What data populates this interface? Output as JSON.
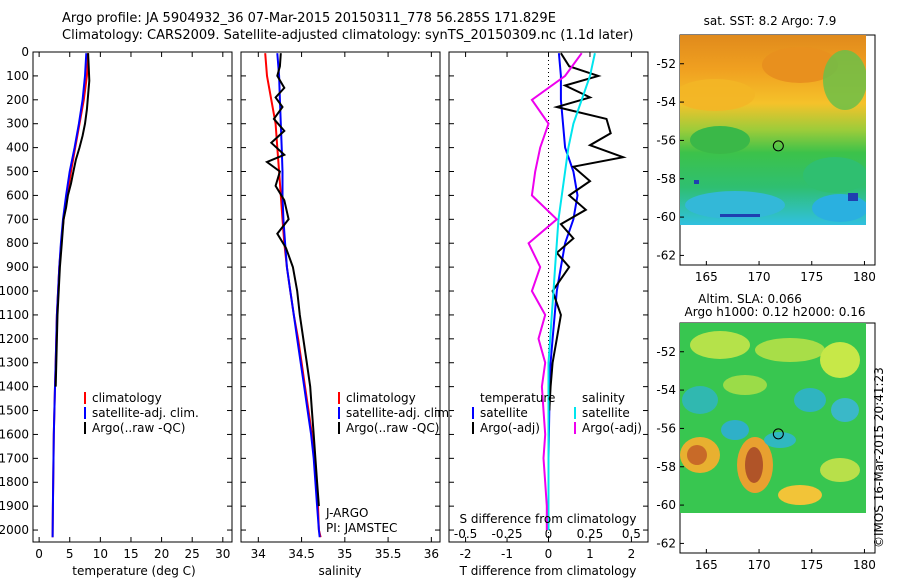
{
  "header": {
    "line1": "Argo profile: JA 5904932_36 07-Mar-2015 20150311_778 56.285S 171.829E",
    "line2": "Climatology: CARS2009. Satellite-adjusted climatology: synTS_20150309.nc (1.1d later)"
  },
  "credit": "©IMOS 16-Mar-2015 20:41:23",
  "colors": {
    "climatology": "#ff0000",
    "satellite": "#0000ff",
    "argo": "#000000",
    "salinity_satellite": "#00e5ee",
    "salinity_argo": "#ee00ee",
    "marker": "#000000"
  },
  "chart_data": [
    {
      "type": "line",
      "id": "temperature",
      "xlabel": "temperature (deg C)",
      "ylabel": "",
      "xlim": [
        -1,
        31.5
      ],
      "ylim": [
        2050,
        0
      ],
      "xticks": [
        "0",
        "5",
        "10",
        "15",
        "20",
        "25",
        "30"
      ],
      "yticks": [
        "0",
        "100",
        "200",
        "300",
        "400",
        "500",
        "600",
        "700",
        "800",
        "900",
        "1000",
        "1100",
        "1200",
        "1300",
        "1400",
        "1500",
        "1600",
        "1700",
        "1800",
        "1900",
        "2000"
      ],
      "legend": [
        "climatology",
        "satellite-adj. clim.",
        "Argo(..raw -QC)"
      ],
      "series": [
        {
          "name": "climatology",
          "color": "#ff0000",
          "x": [
            8.0,
            7.8,
            7.3,
            6.6,
            5.9,
            5.2,
            4.6,
            4.0,
            3.6,
            3.3,
            3.1,
            2.9,
            2.8,
            2.7,
            2.6,
            2.5,
            2.4,
            2.35,
            2.3,
            2.25,
            2.2
          ],
          "y": [
            5,
            100,
            200,
            300,
            400,
            500,
            600,
            700,
            800,
            900,
            1000,
            1100,
            1200,
            1300,
            1400,
            1500,
            1600,
            1700,
            1800,
            1900,
            2030
          ]
        },
        {
          "name": "satellite-adj. clim.",
          "color": "#0000ff",
          "x": [
            7.7,
            7.5,
            7.1,
            6.5,
            5.8,
            5.0,
            4.4,
            3.9,
            3.55,
            3.3,
            3.1,
            2.9,
            2.8,
            2.7,
            2.6,
            2.5,
            2.4,
            2.35,
            2.3,
            2.25,
            2.2
          ],
          "y": [
            5,
            100,
            200,
            300,
            400,
            500,
            600,
            700,
            800,
            900,
            1000,
            1100,
            1200,
            1300,
            1400,
            1500,
            1600,
            1700,
            1800,
            1900,
            2030
          ]
        },
        {
          "name": "Argo(..raw -QC)",
          "color": "#000000",
          "x": [
            8.0,
            8.1,
            8.2,
            8.0,
            7.8,
            7.5,
            7.1,
            6.6,
            6.0,
            5.6,
            5.2,
            4.7,
            4.4,
            4.0,
            3.7,
            3.4,
            3.2,
            3.0,
            2.9,
            2.8,
            2.7
          ],
          "y": [
            5,
            60,
            120,
            180,
            240,
            300,
            350,
            400,
            450,
            500,
            550,
            600,
            650,
            700,
            800,
            900,
            1000,
            1100,
            1200,
            1300,
            1400
          ]
        }
      ],
      "annotations": []
    },
    {
      "type": "line",
      "id": "salinity",
      "xlabel": "salinity",
      "ylabel": "",
      "xlim": [
        33.8,
        36.1
      ],
      "ylim": [
        2050,
        0
      ],
      "xticks": [
        "34",
        "34.5",
        "35",
        "35.5",
        "36"
      ],
      "legend": [
        "climatology",
        "satellite-adj. clim.",
        "Argo(..raw -QC)"
      ],
      "series": [
        {
          "name": "climatology",
          "color": "#ff0000",
          "x": [
            34.08,
            34.1,
            34.15,
            34.2,
            34.22,
            34.24,
            34.26,
            34.28,
            34.3,
            34.33,
            34.37,
            34.41,
            34.46,
            34.5,
            34.54,
            34.58,
            34.62,
            34.65,
            34.67,
            34.69,
            34.7,
            34.72
          ],
          "y": [
            5,
            100,
            200,
            300,
            400,
            500,
            600,
            700,
            800,
            900,
            1000,
            1100,
            1200,
            1300,
            1400,
            1500,
            1600,
            1700,
            1800,
            1900,
            2000,
            2030
          ]
        },
        {
          "name": "satellite-adj. clim.",
          "color": "#0000ff",
          "x": [
            34.22,
            34.24,
            34.25,
            34.26,
            34.27,
            34.28,
            34.28,
            34.29,
            34.31,
            34.33,
            34.37,
            34.41,
            34.45,
            34.49,
            34.53,
            34.57,
            34.61,
            34.64,
            34.66,
            34.68,
            34.7,
            34.71
          ],
          "y": [
            5,
            100,
            200,
            300,
            400,
            500,
            600,
            700,
            800,
            900,
            1000,
            1100,
            1200,
            1300,
            1400,
            1500,
            1600,
            1700,
            1800,
            1900,
            2000,
            2030
          ]
        },
        {
          "name": "Argo(..raw -QC)",
          "color": "#000000",
          "x": [
            34.26,
            34.25,
            34.22,
            34.3,
            34.2,
            34.28,
            34.18,
            34.3,
            34.15,
            34.3,
            34.1,
            34.25,
            34.2,
            34.3,
            34.35,
            34.22,
            34.32,
            34.4,
            34.45,
            34.48,
            34.52,
            34.56,
            34.6,
            34.62,
            34.64,
            34.66,
            34.68,
            34.7
          ],
          "y": [
            5,
            60,
            100,
            150,
            190,
            230,
            280,
            330,
            380,
            430,
            460,
            500,
            560,
            620,
            700,
            760,
            820,
            900,
            1000,
            1100,
            1200,
            1300,
            1400,
            1500,
            1600,
            1700,
            1800,
            1900
          ]
        }
      ],
      "annotations": [
        "J-ARGO",
        "PI: JAMSTEC"
      ]
    },
    {
      "type": "line",
      "id": "difference",
      "xlabel": "T difference from climatology",
      "xlabel2": "S difference from climatology",
      "xlim": [
        -2.4,
        2.4
      ],
      "ylim": [
        2050,
        0
      ],
      "xticks": [
        "-2",
        "-1",
        "0",
        "1",
        "2"
      ],
      "xticks2": [
        "-0.5",
        "-0.25",
        "0",
        "0.25",
        "0.5"
      ],
      "legend_headers": [
        "temperature",
        "salinity"
      ],
      "legend": [
        "satellite",
        "Argo(-adj)",
        "satellite",
        "Argo(-adj)"
      ],
      "series": [
        {
          "name": "temperature satellite",
          "color": "#0000ff",
          "x": [
            0.25,
            0.3,
            0.3,
            0.35,
            0.4,
            0.6,
            0.7,
            0.6,
            0.4,
            0.3,
            0.2,
            0.15,
            0.1,
            0.05,
            0.03,
            0.02,
            0.01,
            0.0,
            0.0,
            0.0,
            0.0
          ],
          "y": [
            5,
            100,
            200,
            300,
            400,
            500,
            600,
            700,
            800,
            900,
            1000,
            1100,
            1200,
            1300,
            1400,
            1500,
            1600,
            1700,
            1800,
            1900,
            2000
          ]
        },
        {
          "name": "temperature Argo(-adj)",
          "color": "#000000",
          "x": [
            0.3,
            0.5,
            1.2,
            0.4,
            1.0,
            0.2,
            1.4,
            1.5,
            1.0,
            1.8,
            0.6,
            1.0,
            0.5,
            0.9,
            0.3,
            0.6,
            0.2,
            0.5,
            0.1,
            0.3,
            0.2,
            0.1,
            0.05,
            0.02
          ],
          "y": [
            5,
            60,
            100,
            140,
            190,
            230,
            280,
            340,
            390,
            440,
            480,
            540,
            600,
            660,
            720,
            780,
            840,
            900,
            1000,
            1100,
            1200,
            1300,
            1400,
            1500
          ]
        },
        {
          "name": "salinity satellite",
          "color": "#00e5ee",
          "x": [
            0.28,
            0.25,
            0.2,
            0.15,
            0.12,
            0.1,
            0.08,
            0.06,
            0.05,
            0.04,
            0.03,
            0.02,
            0.01,
            0.0,
            0.0,
            0.0,
            0.0,
            0.0,
            0.0,
            0.0,
            0.0
          ],
          "y": [
            5,
            100,
            200,
            300,
            400,
            500,
            600,
            700,
            800,
            900,
            1000,
            1100,
            1200,
            1300,
            1400,
            1500,
            1600,
            1700,
            1800,
            1900,
            2000
          ]
        },
        {
          "name": "salinity Argo(-adj)",
          "color": "#ee00ee",
          "x": [
            0.2,
            0.1,
            -0.1,
            0.0,
            -0.05,
            -0.08,
            -0.1,
            0.05,
            -0.12,
            -0.05,
            -0.1,
            -0.02,
            -0.06,
            -0.02,
            -0.04,
            -0.03,
            -0.02,
            -0.03,
            -0.02,
            -0.01,
            -0.01
          ],
          "y": [
            5,
            100,
            200,
            300,
            400,
            500,
            600,
            700,
            800,
            900,
            1000,
            1100,
            1200,
            1300,
            1400,
            1500,
            1600,
            1700,
            1800,
            1900,
            2000
          ]
        }
      ],
      "annotations": []
    },
    {
      "type": "heatmap",
      "id": "sst-map",
      "title": "sat. SST: 8.2  Argo: 7.9",
      "xlim": [
        162.5,
        181
      ],
      "ylim": [
        -62.5,
        -50.5
      ],
      "xticks": [
        "165",
        "170",
        "175",
        "180"
      ],
      "yticks": [
        "-52",
        "-54",
        "-56",
        "-58",
        "-60",
        "-62"
      ],
      "marker": {
        "lon": 171.829,
        "lat": -56.285
      }
    },
    {
      "type": "heatmap",
      "id": "sla-map",
      "title": "Altim. SLA: 0.066",
      "subtitle": "Argo h1000: 0.12 h2000: 0.16",
      "xlim": [
        162.5,
        181
      ],
      "ylim": [
        -62.5,
        -50.5
      ],
      "xticks": [
        "165",
        "170",
        "175",
        "180"
      ],
      "yticks": [
        "-52",
        "-54",
        "-56",
        "-58",
        "-60",
        "-62"
      ],
      "marker": {
        "lon": 171.829,
        "lat": -56.285
      }
    }
  ]
}
